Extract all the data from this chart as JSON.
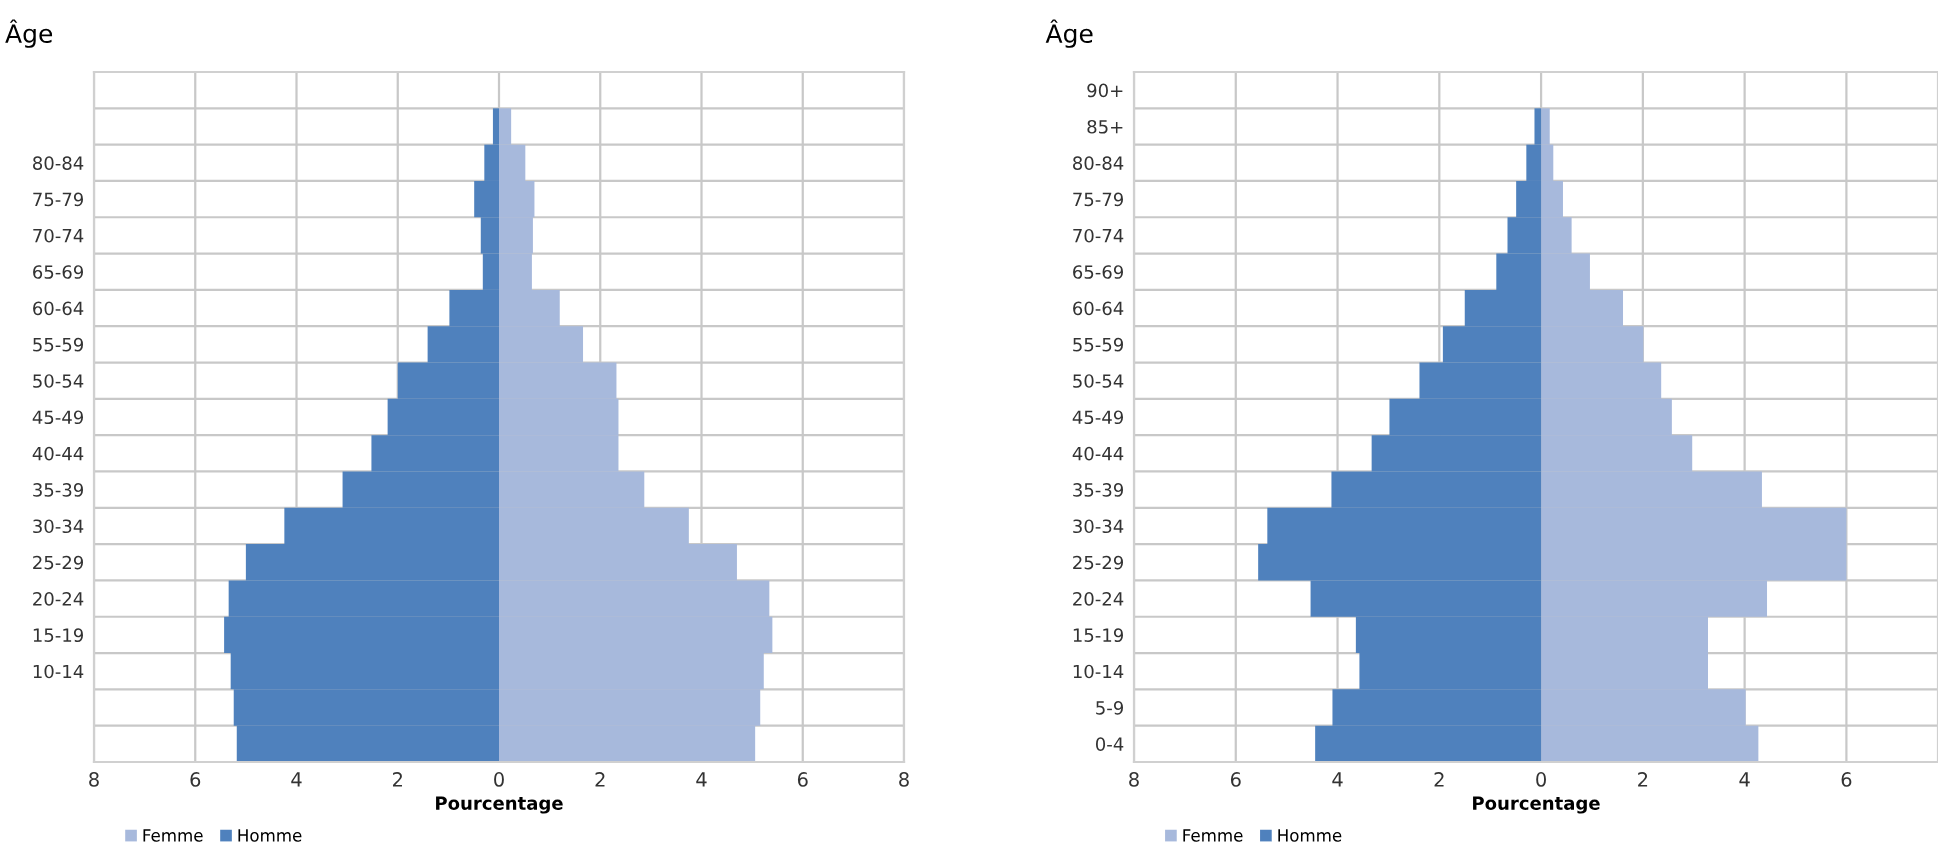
{
  "chart_data": [
    {
      "type": "bar",
      "orientation": "horizontal",
      "stacked": true,
      "ylabel": "Âge",
      "xlabel": "Pourcentage",
      "categories": [
        null,
        null,
        "80-84",
        "75-79",
        "70-74",
        "65-69",
        "60-64",
        "55-59",
        "50-54",
        "45-49",
        "40-44",
        "35-39",
        "30-34",
        "25-29",
        "20-24",
        "15-19",
        "10-14",
        null,
        null
      ],
      "series": [
        {
          "name": "Femme",
          "color": "#a7b9dc",
          "values": [
            null,
            0.24,
            0.52,
            0.7,
            0.67,
            0.65,
            1.2,
            1.66,
            2.32,
            2.36,
            2.36,
            2.87,
            3.75,
            4.7,
            5.34,
            5.4,
            5.23,
            5.16,
            5.06
          ]
        },
        {
          "name": "Homme",
          "color": "#4f81bd",
          "values": [
            null,
            -0.12,
            -0.29,
            -0.49,
            -0.36,
            -0.32,
            -0.98,
            -1.41,
            -2.0,
            -2.2,
            -2.52,
            -3.09,
            -4.24,
            -5.0,
            -5.34,
            -5.43,
            -5.3,
            -5.24,
            -5.18
          ]
        }
      ],
      "xlim": [
        -8,
        8
      ],
      "xticks": [
        {
          "value": -8,
          "label": "8"
        },
        {
          "value": -6,
          "label": "6"
        },
        {
          "value": -4,
          "label": "4"
        },
        {
          "value": -2,
          "label": "2"
        },
        0,
        2,
        4,
        6,
        8
      ],
      "grid": true,
      "legend": "bottom left"
    },
    {
      "type": "bar",
      "orientation": "horizontal",
      "stacked": true,
      "ylabel": "Âge",
      "xlabel": "Pourcentage",
      "categories": [
        "90+",
        "85+",
        "80-84",
        "75-79",
        "70-74",
        "65-69",
        "60-64",
        "55-59",
        "50-54",
        "45-49",
        "40-44",
        "35-39",
        "30-34",
        "25-29",
        "20-24",
        "15-19",
        "10-14",
        "5-9",
        "0-4"
      ],
      "series": [
        {
          "name": "Femme",
          "color": "#a7b9dc",
          "values": [
            null,
            0.17,
            0.24,
            0.43,
            0.6,
            0.96,
            1.61,
            2.01,
            2.36,
            2.57,
            2.97,
            4.34,
            6.0,
            6.0,
            4.44,
            3.28,
            3.28,
            4.02,
            4.27
          ]
        },
        {
          "name": "Homme",
          "color": "#4f81bd",
          "values": [
            null,
            -0.13,
            -0.29,
            -0.49,
            -0.66,
            -0.88,
            -1.5,
            -1.93,
            -2.39,
            -2.98,
            -3.33,
            -4.12,
            -5.38,
            -5.56,
            -4.53,
            -3.64,
            -3.57,
            -4.1,
            -4.44
          ]
        }
      ],
      "xlim": [
        -8,
        7.8
      ],
      "xticks": [
        {
          "value": -8,
          "label": "8"
        },
        {
          "value": -6,
          "label": "6"
        },
        {
          "value": -4,
          "label": "4"
        },
        {
          "value": -2,
          "label": "2"
        },
        0,
        2,
        4,
        6
      ],
      "grid": true,
      "legend": "bottom left"
    }
  ]
}
